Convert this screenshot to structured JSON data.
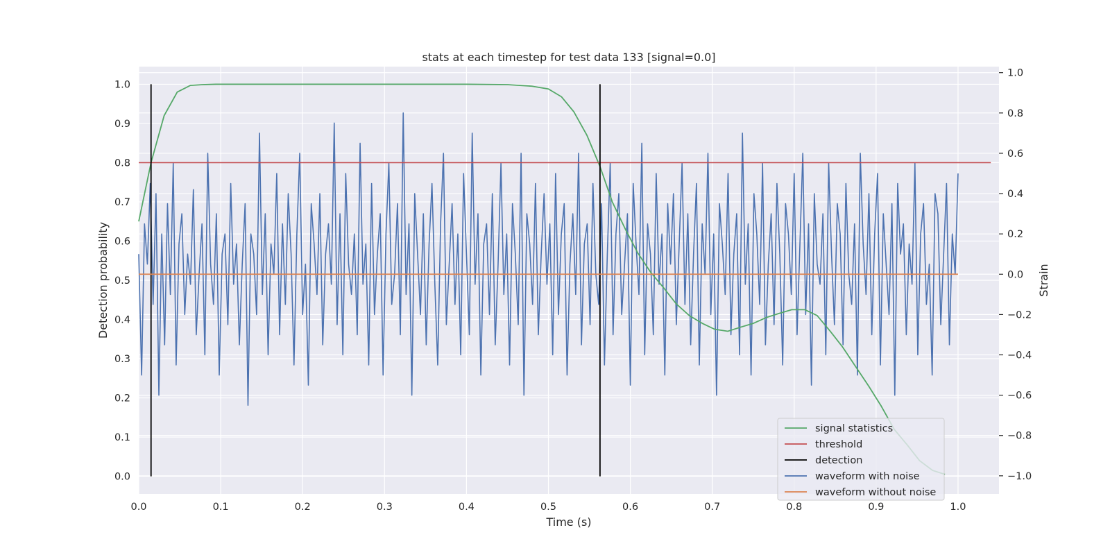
{
  "chart_data": {
    "type": "line",
    "title": "stats at each timestep for test data 133 [signal=0.0]",
    "xlabel": "Time (s)",
    "ylabel": "Detection probability",
    "ylabel_right": "Strain",
    "xlim": [
      0.0,
      1.05
    ],
    "ylim": [
      -0.045,
      1.045
    ],
    "ylim_right": [
      -1.09,
      1.03
    ],
    "x_ticks": [
      "0.0",
      "0.1",
      "0.2",
      "0.3",
      "0.4",
      "0.5",
      "0.6",
      "0.7",
      "0.8",
      "0.9",
      "1.0"
    ],
    "y_ticks": [
      "0.0",
      "0.1",
      "0.2",
      "0.3",
      "0.4",
      "0.5",
      "0.6",
      "0.7",
      "0.8",
      "0.9",
      "1.0"
    ],
    "y_right_ticks": [
      "−1.0",
      "−0.8",
      "−0.6",
      "−0.4",
      "−0.2",
      "0.0",
      "0.2",
      "0.4",
      "0.6",
      "0.8",
      "1.0"
    ],
    "grid": true,
    "legend_position": "lower-right",
    "colors": {
      "signal_statistics": "#55a868",
      "threshold": "#c44e52",
      "detection": "#000000",
      "waveform_with_noise": "#4c72b0",
      "waveform_without_noise": "#dd8452",
      "plot_background": "#eaeaf2",
      "grid": "#ffffff"
    },
    "series": [
      {
        "name": "signal statistics",
        "axis": "left",
        "x": [
          0.0,
          0.015,
          0.031,
          0.047,
          0.063,
          0.078,
          0.094,
          0.11,
          0.2,
          0.3,
          0.4,
          0.45,
          0.48,
          0.5,
          0.516,
          0.531,
          0.547,
          0.563,
          0.578,
          0.594,
          0.609,
          0.625,
          0.641,
          0.656,
          0.672,
          0.688,
          0.703,
          0.719,
          0.734,
          0.75,
          0.766,
          0.781,
          0.797,
          0.813,
          0.828,
          0.844,
          0.859,
          0.875,
          0.891,
          0.906,
          0.922,
          0.938,
          0.953,
          0.969,
          0.984
        ],
        "y": [
          0.65,
          0.8,
          0.92,
          0.98,
          0.997,
          0.999,
          1.0,
          1.0,
          1.0,
          1.0,
          1.0,
          0.999,
          0.995,
          0.988,
          0.968,
          0.93,
          0.87,
          0.79,
          0.7,
          0.63,
          0.57,
          0.52,
          0.48,
          0.44,
          0.41,
          0.39,
          0.375,
          0.37,
          0.38,
          0.39,
          0.405,
          0.415,
          0.425,
          0.425,
          0.41,
          0.37,
          0.33,
          0.28,
          0.23,
          0.18,
          0.12,
          0.08,
          0.04,
          0.015,
          0.005
        ]
      },
      {
        "name": "threshold",
        "axis": "left",
        "x": [
          0.0,
          1.04
        ],
        "y": [
          0.8,
          0.8
        ]
      },
      {
        "name": "detection",
        "axis": "left",
        "type": "vlines",
        "x": [
          0.015,
          0.563
        ],
        "ymin": 0.0,
        "ymax": 1.0
      },
      {
        "name": "waveform with noise",
        "axis": "right",
        "x_start": 0.0,
        "x_end": 1.0,
        "y": [
          0.1,
          -0.5,
          0.25,
          0.05,
          0.45,
          -0.15,
          0.4,
          -0.6,
          0.2,
          -0.35,
          0.35,
          -0.1,
          0.55,
          -0.45,
          0.15,
          0.3,
          -0.2,
          0.1,
          -0.05,
          0.42,
          -0.3,
          0.0,
          0.25,
          -0.4,
          0.6,
          0.05,
          -0.15,
          0.3,
          -0.5,
          0.1,
          0.2,
          -0.25,
          0.45,
          -0.05,
          0.15,
          -0.35,
          0.05,
          0.35,
          -0.65,
          0.2,
          0.1,
          -0.2,
          0.7,
          -0.1,
          0.3,
          -0.4,
          0.15,
          0.0,
          0.5,
          -0.3,
          0.25,
          -0.15,
          0.4,
          0.1,
          -0.45,
          0.2,
          0.6,
          -0.2,
          0.05,
          -0.55,
          0.35,
          0.15,
          -0.1,
          0.4,
          -0.35,
          0.1,
          0.25,
          -0.05,
          0.75,
          -0.25,
          0.3,
          -0.4,
          0.5,
          0.05,
          -0.1,
          0.2,
          -0.3,
          0.65,
          -0.05,
          0.15,
          -0.45,
          0.45,
          -0.2,
          0.1,
          0.3,
          -0.5,
          0.2,
          0.55,
          -0.15,
          0.0,
          0.35,
          -0.3,
          0.8,
          -0.1,
          0.25,
          -0.6,
          0.4,
          0.1,
          -0.2,
          0.3,
          -0.35,
          0.15,
          0.45,
          -0.05,
          -0.45,
          0.25,
          0.6,
          -0.25,
          0.05,
          0.35,
          -0.15,
          0.2,
          -0.4,
          0.5,
          0.1,
          -0.3,
          0.7,
          -0.05,
          0.3,
          -0.5,
          0.15,
          0.25,
          -0.2,
          0.4,
          -0.35,
          0.05,
          0.55,
          -0.1,
          0.2,
          -0.45,
          0.35,
          0.1,
          -0.25,
          0.6,
          -0.6,
          0.3,
          0.15,
          -0.15,
          0.45,
          -0.3,
          0.1,
          0.4,
          -0.05,
          0.25,
          -0.4,
          0.5,
          -0.2,
          0.2,
          0.35,
          -0.5,
          0.05,
          0.3,
          -0.1,
          0.6,
          -0.35,
          0.15,
          0.25,
          -0.25,
          0.45,
          0.0,
          -0.15,
          0.35,
          -0.45,
          0.1,
          0.55,
          -0.3,
          0.2,
          0.4,
          -0.2,
          0.05,
          0.3,
          -0.55,
          0.45,
          0.15,
          -0.1,
          0.65,
          -0.4,
          0.25,
          0.1,
          -0.3,
          0.5,
          -0.05,
          0.2,
          -0.5,
          0.35,
          0.05,
          0.4,
          -0.25,
          0.15,
          0.55,
          -0.15,
          0.3,
          -0.35,
          0.1,
          0.45,
          -0.45,
          0.25,
          0.0,
          0.6,
          -0.2,
          0.2,
          -0.6,
          0.35,
          0.15,
          -0.1,
          0.5,
          -0.3,
          0.1,
          0.3,
          -0.4,
          0.7,
          -0.05,
          0.25,
          -0.5,
          0.4,
          0.2,
          -0.15,
          0.55,
          -0.35,
          0.05,
          0.3,
          -0.25,
          0.45,
          0.1,
          -0.45,
          0.35,
          0.2,
          -0.1,
          0.5,
          -0.3,
          0.15,
          0.6,
          -0.2,
          0.25,
          -0.55,
          0.4,
          0.05,
          -0.05,
          0.3,
          -0.4,
          0.55,
          0.1,
          -0.25,
          0.35,
          0.2,
          -0.35,
          0.45,
          0.0,
          -0.15,
          0.25,
          -0.5,
          0.6,
          0.15,
          -0.1,
          0.4,
          -0.3,
          0.2,
          0.5,
          -0.45,
          0.3,
          0.05,
          -0.2,
          0.35,
          -0.6,
          0.45,
          0.1,
          0.25,
          -0.3,
          0.15,
          -0.05,
          0.55,
          -0.4,
          0.2,
          0.35,
          -0.15,
          0.05,
          -0.5,
          0.4,
          0.3,
          -0.25,
          0.1,
          0.45,
          -0.35,
          0.2,
          0.0,
          0.5
        ]
      },
      {
        "name": "waveform without noise",
        "axis": "right",
        "x": [
          0.0,
          1.0
        ],
        "y": [
          0.0,
          0.0
        ]
      }
    ]
  }
}
